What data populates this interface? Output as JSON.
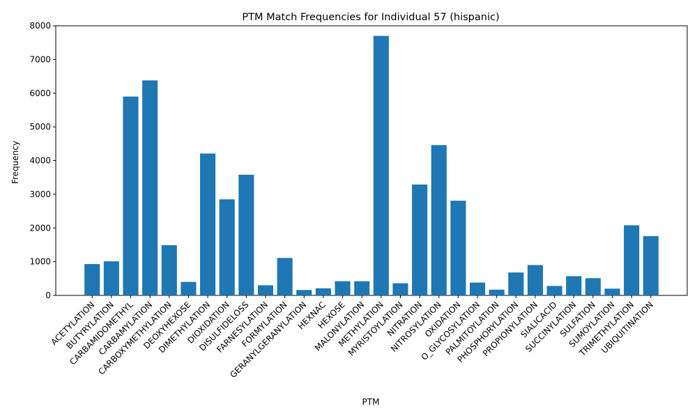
{
  "chart_data": {
    "type": "bar",
    "title": "PTM Match Frequencies for Individual 57 (hispanic)",
    "xlabel": "PTM",
    "ylabel": "Frequency",
    "ylim": [
      0,
      8000
    ],
    "yticks": [
      0,
      1000,
      2000,
      3000,
      4000,
      5000,
      6000,
      7000,
      8000
    ],
    "bar_color": "#1f77b4",
    "grid": false,
    "categories": [
      "ACETYLATION",
      "BUTYRYLATION",
      "CARBAMIDOMETHYL",
      "CARBAMYLATION",
      "CARBOXYMETHYLATION",
      "DEOXYHEXOSE",
      "DIMETHYLATION",
      "DIOXIDATION",
      "DISULFIDELOSS",
      "FARNESYLATION",
      "FORMYLATION",
      "GERANYLGERANYLATION",
      "HEXNAC",
      "HEXOSE",
      "MALONYLATION",
      "METHYLATION",
      "MYRISTOYLATION",
      "NITRATION",
      "NITROSYLATION",
      "OXIDATION",
      "O_GLYCOSYLATION",
      "PALMITOYLATION",
      "PHOSPHORYLATION",
      "PROPIONYLATION",
      "SIALICACID",
      "SUCCINYLATION",
      "SULFATION",
      "SUMOYLATION",
      "TRIMETHYLATION",
      "UBIQUITINATION"
    ],
    "values": [
      930,
      1010,
      5900,
      6380,
      1490,
      400,
      4210,
      2850,
      3580,
      300,
      1110,
      160,
      210,
      420,
      420,
      7700,
      360,
      3290,
      4460,
      2810,
      380,
      170,
      680,
      900,
      280,
      570,
      510,
      200,
      2080,
      1760
    ]
  }
}
